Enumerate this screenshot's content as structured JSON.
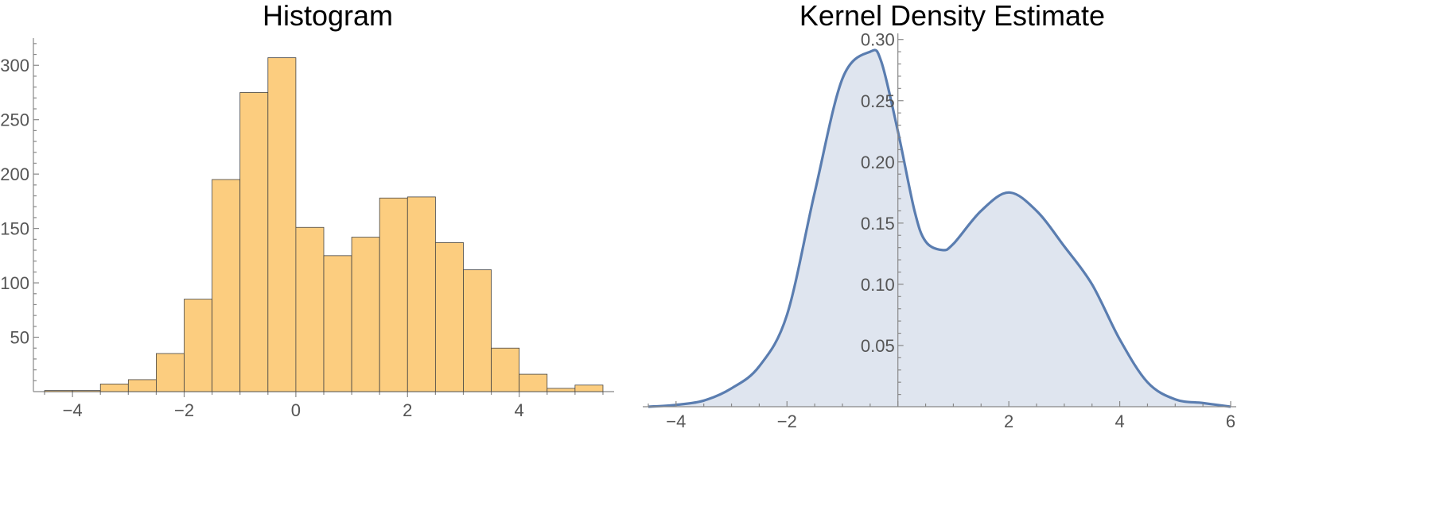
{
  "chart_data": [
    {
      "type": "bar",
      "title": "Histogram",
      "bin_width": 0.5,
      "bin_starts": [
        -4.5,
        -4.0,
        -3.5,
        -3.0,
        -2.5,
        -2.0,
        -1.5,
        -1.0,
        -0.5,
        0.0,
        0.5,
        1.0,
        1.5,
        2.0,
        2.5,
        3.0,
        3.5,
        4.0,
        4.5,
        5.0
      ],
      "values": [
        1,
        1,
        7,
        11,
        35,
        85,
        195,
        275,
        307,
        151,
        125,
        142,
        178,
        179,
        137,
        112,
        40,
        16,
        3,
        6
      ],
      "xlim": [
        -4.7,
        5.7
      ],
      "ylim": [
        0,
        325
      ],
      "x_ticks": [
        -4,
        -2,
        0,
        2,
        4
      ],
      "x_tick_labels": [
        "−4",
        "−2",
        "0",
        "2",
        "4"
      ],
      "y_ticks": [
        50,
        100,
        150,
        200,
        250,
        300
      ],
      "y_tick_labels": [
        "50",
        "100",
        "150",
        "200",
        "250",
        "300"
      ],
      "colors": {
        "bar_fill": "#FCCD7F",
        "bar_stroke": "#444444"
      }
    },
    {
      "type": "area",
      "title": "Kernel Density Estimate",
      "x": [
        -4.5,
        -4.0,
        -3.5,
        -3.0,
        -2.5,
        -2.0,
        -1.5,
        -1.0,
        -0.5,
        -0.3,
        0.0,
        0.3,
        0.5,
        0.8,
        1.0,
        1.5,
        2.0,
        2.5,
        3.0,
        3.5,
        4.0,
        4.5,
        5.0,
        5.5,
        6.0
      ],
      "y": [
        0.0,
        0.0015,
        0.005,
        0.015,
        0.033,
        0.075,
        0.175,
        0.268,
        0.29,
        0.282,
        0.225,
        0.16,
        0.135,
        0.128,
        0.133,
        0.16,
        0.175,
        0.16,
        0.131,
        0.1,
        0.055,
        0.02,
        0.006,
        0.003,
        0.0
      ],
      "xlim": [
        -4.6,
        6.1
      ],
      "ylim": [
        0,
        0.305
      ],
      "x_ticks": [
        -4,
        -2,
        2,
        4,
        6
      ],
      "x_tick_labels": [
        "−4",
        "−2",
        "2",
        "4",
        "6"
      ],
      "y_ticks": [
        0.05,
        0.1,
        0.15,
        0.2,
        0.25,
        0.3
      ],
      "y_tick_labels": [
        "0.05",
        "0.10",
        "0.15",
        "0.20",
        "0.25",
        "0.30"
      ],
      "colors": {
        "line": "#5A7DB0",
        "fill": "#DFE5EF"
      }
    }
  ]
}
